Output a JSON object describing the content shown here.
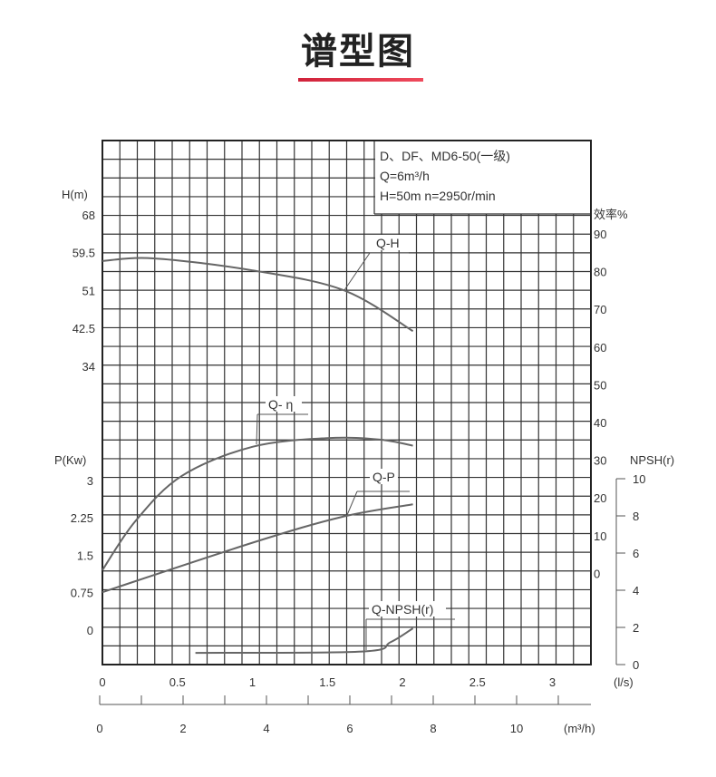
{
  "page_title": "谱型图",
  "accent_color": "#d9283f",
  "chart_data": {
    "type": "line",
    "info": [
      "D、DF、MD6-50(一级)",
      "Q=6m³/h",
      "H=50m   n=2950r/min"
    ],
    "grid": true,
    "x_axis": {
      "label": "(l/s)",
      "ticks": [
        0,
        0.5,
        1,
        1.5,
        2,
        2.5,
        3
      ],
      "range": [
        0,
        3.26
      ]
    },
    "x2_axis": {
      "label": "(m³/h)",
      "ticks": [
        0,
        2,
        4,
        6,
        8,
        10
      ],
      "range": [
        0,
        11.7
      ]
    },
    "h_axis": {
      "label": "H(m)",
      "ticks": [
        "68",
        "59.5",
        "51",
        "42.5",
        "34"
      ]
    },
    "p_axis": {
      "label": "P(Kw)",
      "ticks": [
        "3",
        "2.25",
        "1.5",
        "0.75",
        "0"
      ]
    },
    "eff_axis": {
      "label": "效率%",
      "ticks": [
        "90",
        "80",
        "70",
        "60",
        "50",
        "40",
        "30",
        "20",
        "10",
        "0"
      ]
    },
    "npsh_axis": {
      "label": "NPSH(r)",
      "ticks": [
        "10",
        "8",
        "6",
        "4",
        "2",
        "0"
      ]
    },
    "series": [
      {
        "name": "Q-H",
        "axis": "h",
        "x": [
          0,
          0.34,
          1.0,
          1.61,
          2.07
        ],
        "y": [
          57.6,
          58.2,
          55.5,
          51,
          41.8
        ]
      },
      {
        "name": "Q- η",
        "axis": "eff",
        "x": [
          0,
          0.22,
          0.53,
          1.0,
          1.5,
          1.85,
          2.07
        ],
        "y": [
          1,
          14,
          26,
          33.7,
          36,
          35.6,
          34
        ]
      },
      {
        "name": "Q-P",
        "axis": "p",
        "x": [
          0,
          1.0,
          1.6,
          2.07
        ],
        "y": [
          0.76,
          1.75,
          2.27,
          2.52
        ]
      },
      {
        "name": "Q-NPSH(r)",
        "axis": "npsh",
        "x": [
          0.62,
          1.73,
          1.92,
          2.07
        ],
        "y": [
          0.63,
          0.7,
          1.2,
          1.95
        ]
      }
    ]
  }
}
